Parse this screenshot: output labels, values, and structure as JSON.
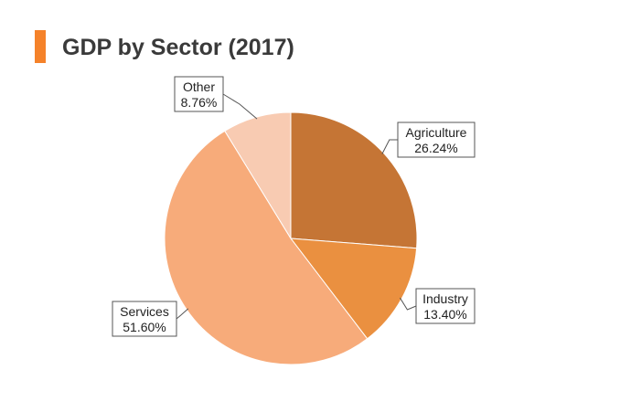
{
  "title": "GDP by Sector (2017)",
  "colors": {
    "accent": "#f5822a"
  },
  "chart_data": {
    "type": "pie",
    "title": "GDP by Sector (2017)",
    "slices": [
      {
        "label": "Agriculture",
        "value": 26.24,
        "value_label": "26.24%",
        "color": "#c57535"
      },
      {
        "label": "Industry",
        "value": 13.4,
        "value_label": "13.40%",
        "color": "#ea9040"
      },
      {
        "label": "Services",
        "value": 51.6,
        "value_label": "51.60%",
        "color": "#f7ab7a"
      },
      {
        "label": "Other",
        "value": 8.76,
        "value_label": "8.76%",
        "color": "#f8cbb2"
      }
    ],
    "start_angle": "12 o'clock",
    "direction": "clockwise"
  }
}
